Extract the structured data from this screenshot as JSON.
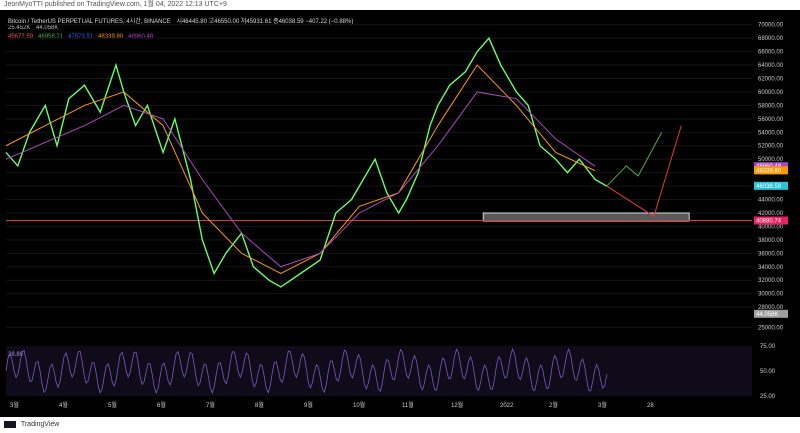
{
  "header": {
    "publish_note": "JeonMyoTTI published on TradingView.com, 1월 04, 2022 12:13 UTC+9"
  },
  "legend": {
    "symbol": "Bitcoin / TetherUS PERPETUAL FUTURES, 4시간, BINANCE",
    "ohlc": "시46445.80  고46550.00  저45931.61  종46038.59  −407.22 (−0.88%)",
    "volume_a": "25.452K",
    "volume_b": "44.058K",
    "ema_values": [
      {
        "value": "45677.59",
        "color": "#ef5350"
      },
      {
        "value": "46958.21",
        "color": "#4caf50"
      },
      {
        "value": "47873.51",
        "color": "#2962ff"
      },
      {
        "value": "48339.80",
        "color": "#ff9800"
      },
      {
        "value": "48960.48",
        "color": "#ab47bc"
      }
    ],
    "rsi_value": "38.89"
  },
  "footer": {
    "brand": "TradingView"
  },
  "chart_data": {
    "type": "line",
    "title": "Bitcoin / TetherUS PERPETUAL FUTURES, 4시간, BINANCE",
    "x_tick_labels": [
      "3월",
      "4월",
      "5월",
      "6월",
      "7월",
      "8월",
      "9월",
      "10월",
      "11월",
      "12월",
      "2022",
      "2월",
      "3월",
      "28"
    ],
    "price_axis_ticks": [
      25000,
      28000,
      30000,
      32000,
      34000,
      36000,
      38000,
      40000,
      42000,
      44000,
      46000,
      48000,
      50000,
      52000,
      54000,
      56000,
      58000,
      60000,
      62000,
      64000,
      66000,
      68000,
      70000
    ],
    "ylim": [
      24000,
      71000
    ],
    "price_series": {
      "name": "",
      "color": "#66ff66",
      "points": [
        [
          0,
          51000
        ],
        [
          0.3,
          49000
        ],
        [
          0.6,
          54000
        ],
        [
          1,
          58000
        ],
        [
          1.3,
          52000
        ],
        [
          1.6,
          59000
        ],
        [
          2,
          61000
        ],
        [
          2.4,
          57000
        ],
        [
          2.8,
          64000
        ],
        [
          3,
          60000
        ],
        [
          3.3,
          55000
        ],
        [
          3.6,
          58000
        ],
        [
          4,
          51000
        ],
        [
          4.3,
          56000
        ],
        [
          4.7,
          47000
        ],
        [
          5,
          38000
        ],
        [
          5.3,
          33000
        ],
        [
          5.6,
          36000
        ],
        [
          6,
          39000
        ],
        [
          6.3,
          34000
        ],
        [
          6.7,
          32000
        ],
        [
          7,
          31000
        ],
        [
          7.5,
          33000
        ],
        [
          8,
          35000
        ],
        [
          8.4,
          42000
        ],
        [
          8.8,
          44000
        ],
        [
          9,
          46000
        ],
        [
          9.4,
          50000
        ],
        [
          9.7,
          45000
        ],
        [
          10,
          42000
        ],
        [
          10.2,
          44000
        ],
        [
          10.5,
          48000
        ],
        [
          10.8,
          55000
        ],
        [
          11,
          58000
        ],
        [
          11.3,
          61000
        ],
        [
          11.7,
          63000
        ],
        [
          12,
          66000
        ],
        [
          12.3,
          68000
        ],
        [
          12.6,
          64000
        ],
        [
          13,
          60000
        ],
        [
          13.3,
          58000
        ],
        [
          13.6,
          52000
        ],
        [
          14,
          50000
        ],
        [
          14.3,
          48000
        ],
        [
          14.6,
          50000
        ],
        [
          15,
          47000
        ],
        [
          15.3,
          46000
        ]
      ]
    },
    "ema_series": [
      {
        "name": "",
        "color": "#ff9800",
        "points": [
          [
            0,
            52000
          ],
          [
            2,
            58000
          ],
          [
            3,
            60000
          ],
          [
            4,
            55000
          ],
          [
            5,
            42000
          ],
          [
            6,
            36000
          ],
          [
            7,
            33000
          ],
          [
            8,
            36000
          ],
          [
            9,
            43000
          ],
          [
            10,
            45000
          ],
          [
            11,
            55000
          ],
          [
            12,
            64000
          ],
          [
            13,
            58000
          ],
          [
            14,
            51000
          ],
          [
            15,
            48300
          ]
        ]
      },
      {
        "name": "",
        "color": "#ab47bc",
        "points": [
          [
            0,
            50000
          ],
          [
            2,
            55000
          ],
          [
            3,
            58000
          ],
          [
            4,
            56000
          ],
          [
            5,
            47000
          ],
          [
            6,
            39000
          ],
          [
            7,
            34000
          ],
          [
            8,
            36000
          ],
          [
            9,
            42000
          ],
          [
            10,
            45000
          ],
          [
            11,
            52000
          ],
          [
            12,
            60000
          ],
          [
            13,
            59000
          ],
          [
            14,
            53000
          ],
          [
            15,
            48960
          ]
        ]
      }
    ],
    "price_labels": [
      {
        "value": "48960.48",
        "color": "#ab47bc",
        "price": 48960
      },
      {
        "value": "48339.80",
        "color": "#ff9800",
        "price": 48340
      },
      {
        "value": "46038.59",
        "color": "#26c6da",
        "price": 46038
      },
      {
        "value": "40880.74",
        "color": "#e91e63",
        "price": 40880
      },
      {
        "value": "44.058K",
        "color": "#9e9e9e",
        "price": 27000
      }
    ],
    "support_line": 40880,
    "support_zone": [
      40800,
      42000
    ],
    "rsi": {
      "value": 38.89,
      "axis_ticks": [
        25,
        50,
        75
      ],
      "band": [
        30,
        70
      ]
    },
    "projections": [
      {
        "color": "#4caf50",
        "points": [
          [
            15.3,
            46000
          ],
          [
            15.8,
            49000
          ],
          [
            16.1,
            47500
          ],
          [
            16.7,
            54000
          ]
        ]
      },
      {
        "color": "#e53935",
        "points": [
          [
            15.3,
            46000
          ],
          [
            16.5,
            41500
          ],
          [
            17.2,
            55000
          ]
        ]
      }
    ],
    "volume_label": "44.058K",
    "grid": true
  }
}
